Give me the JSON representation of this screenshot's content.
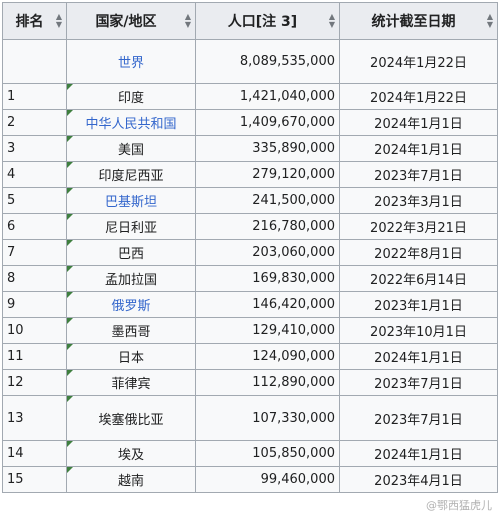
{
  "headers": {
    "rank": "排名",
    "country": "国家/地区",
    "population": "人口[注 3]",
    "date": "统计截至日期"
  },
  "rows": [
    {
      "rank": "",
      "country": "世界",
      "population": "8,089,535,000",
      "date": "2024年1月22日",
      "link": true,
      "marker": false
    },
    {
      "rank": "1",
      "country": "印度",
      "population": "1,421,040,000",
      "date": "2024年1月22日",
      "link": false,
      "marker": true
    },
    {
      "rank": "2",
      "country": "中华人民共和国",
      "population": "1,409,670,000",
      "date": "2024年1月1日",
      "link": true,
      "marker": true
    },
    {
      "rank": "3",
      "country": "美国",
      "population": "335,890,000",
      "date": "2024年1月1日",
      "link": false,
      "marker": true
    },
    {
      "rank": "4",
      "country": "印度尼西亚",
      "population": "279,120,000",
      "date": "2023年7月1日",
      "link": false,
      "marker": true
    },
    {
      "rank": "5",
      "country": "巴基斯坦",
      "population": "241,500,000",
      "date": "2023年3月1日",
      "link": true,
      "marker": true
    },
    {
      "rank": "6",
      "country": "尼日利亚",
      "population": "216,780,000",
      "date": "2022年3月21日",
      "link": false,
      "marker": true
    },
    {
      "rank": "7",
      "country": "巴西",
      "population": "203,060,000",
      "date": "2022年8月1日",
      "link": false,
      "marker": true
    },
    {
      "rank": "8",
      "country": "孟加拉国",
      "population": "169,830,000",
      "date": "2022年6月14日",
      "link": false,
      "marker": true
    },
    {
      "rank": "9",
      "country": "俄罗斯",
      "population": "146,420,000",
      "date": "2023年1月1日",
      "link": true,
      "marker": true
    },
    {
      "rank": "10",
      "country": "墨西哥",
      "population": "129,410,000",
      "date": "2023年10月1日",
      "link": false,
      "marker": true
    },
    {
      "rank": "11",
      "country": "日本",
      "population": "124,090,000",
      "date": "2024年1月1日",
      "link": false,
      "marker": true
    },
    {
      "rank": "12",
      "country": "菲律宾",
      "population": "112,890,000",
      "date": "2023年7月1日",
      "link": false,
      "marker": true
    },
    {
      "rank": "13",
      "country": "埃塞俄比亚",
      "population": "107,330,000",
      "date": "2023年7月1日",
      "link": false,
      "marker": true
    },
    {
      "rank": "14",
      "country": "埃及",
      "population": "105,850,000",
      "date": "2024年1月1日",
      "link": false,
      "marker": true
    },
    {
      "rank": "15",
      "country": "越南",
      "population": "99,460,000",
      "date": "2023年4月1日",
      "link": false,
      "marker": true
    }
  ],
  "watermark": "@鄂西猛虎儿",
  "colors": {
    "link": "#3366cc",
    "text": "#202122",
    "header_bg": "#eaecf0",
    "cell_bg": "#f8f9fa",
    "border": "#a2a9b1",
    "marker": "#3f7f3f"
  }
}
